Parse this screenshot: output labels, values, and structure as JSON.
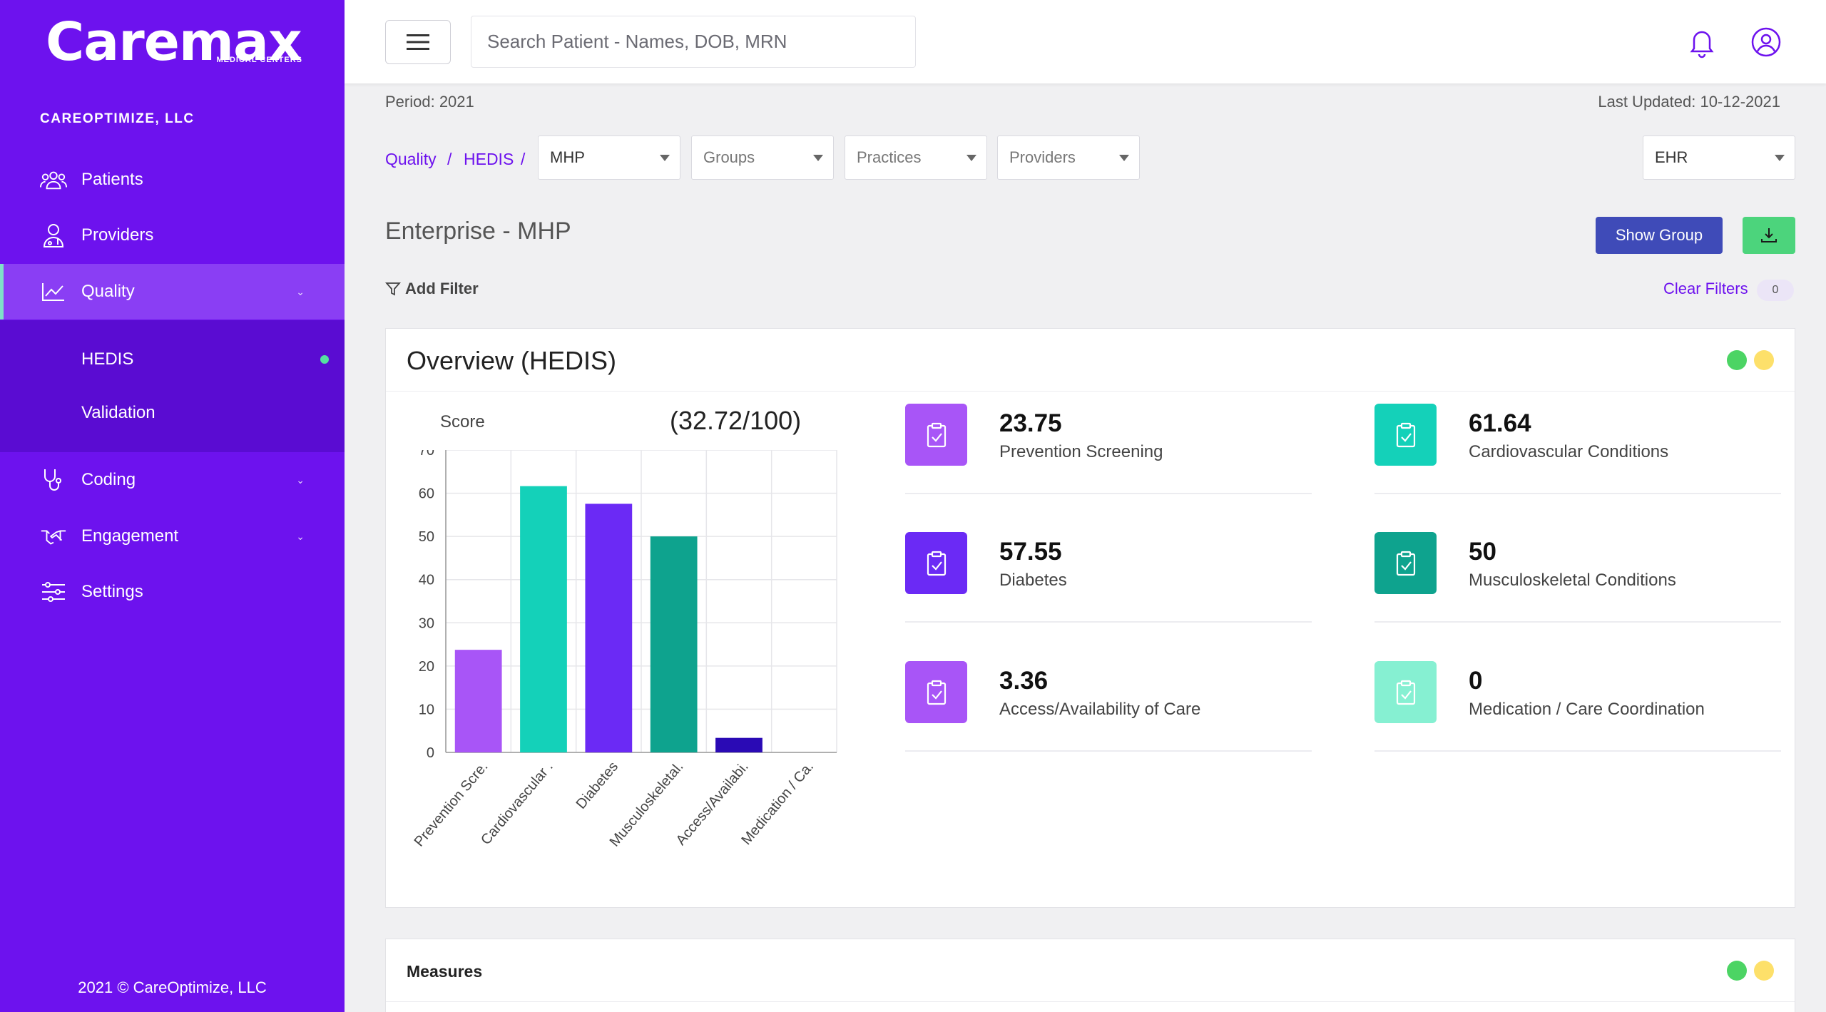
{
  "brand": {
    "logo_text": "Caremax",
    "logo_sub": "MEDICAL CENTERS",
    "org": "CAREOPTIMIZE, LLC"
  },
  "sidebar": {
    "items": [
      {
        "label": "Patients",
        "icon": "users-icon"
      },
      {
        "label": "Providers",
        "icon": "provider-icon"
      },
      {
        "label": "Quality",
        "icon": "chart-line-icon",
        "active": true
      },
      {
        "label": "Coding",
        "icon": "stethoscope-icon"
      },
      {
        "label": "Engagement",
        "icon": "handshake-icon"
      },
      {
        "label": "Settings",
        "icon": "sliders-icon"
      }
    ],
    "sub_items": [
      {
        "label": "HEDIS",
        "active": true
      },
      {
        "label": "Validation"
      }
    ],
    "copyright": "2021 © CareOptimize, LLC"
  },
  "topbar": {
    "search_placeholder": "Search Patient - Names, DOB, MRN"
  },
  "header": {
    "period": "Period: 2021",
    "last_updated": "Last Updated: 10-12-2021"
  },
  "breadcrumb": {
    "item1": "Quality",
    "item2": "HEDIS",
    "sep": "/"
  },
  "filters": {
    "plan": "MHP",
    "groups": "Groups",
    "practices": "Practices",
    "providers": "Providers",
    "source": "EHR"
  },
  "page": {
    "heading": "Enterprise - MHP",
    "show_group_label": "Show Group",
    "add_filter_label": "Add Filter",
    "clear_filters_label": "Clear Filters",
    "filter_count": "0"
  },
  "overview": {
    "title": "Overview (HEDIS)",
    "score_label": "Score",
    "score_value": "(32.72/100)",
    "stats": [
      {
        "value": "23.75",
        "name": "Prevention Screening",
        "color": "#a855f7"
      },
      {
        "value": "61.64",
        "name": "Cardiovascular Conditions",
        "color": "#14d1b9"
      },
      {
        "value": "57.55",
        "name": "Diabetes",
        "color": "#6b2af5"
      },
      {
        "value": "50",
        "name": "Musculoskeletal Conditions",
        "color": "#0ea38e"
      },
      {
        "value": "3.36",
        "name": "Access/Availability of Care",
        "color": "#a855f7"
      },
      {
        "value": "0",
        "name": "Medication / Care Coordination",
        "color": "#86f0d2"
      }
    ]
  },
  "measures": {
    "title": "Measures"
  },
  "colors": {
    "sidebar": "#6d12ee",
    "accent": "#6d12ee",
    "show_group": "#3f4bb8",
    "download": "#4cd47c"
  },
  "chart_data": {
    "type": "bar",
    "categories": [
      "Prevention Scre.",
      "Cardiovascular .",
      "Diabetes",
      "Musculoskeletal.",
      "Access/Availabi.",
      "Medication / Ca."
    ],
    "values": [
      23.75,
      61.64,
      57.55,
      50,
      3.36,
      0
    ],
    "colors": [
      "#a855f7",
      "#14d1b9",
      "#6b2af5",
      "#0ea38e",
      "#2a0ab5",
      "#86f0d2"
    ],
    "ylim": [
      0,
      70
    ],
    "yticks": [
      0,
      10,
      20,
      30,
      40,
      50,
      60,
      70
    ],
    "grid": true
  }
}
